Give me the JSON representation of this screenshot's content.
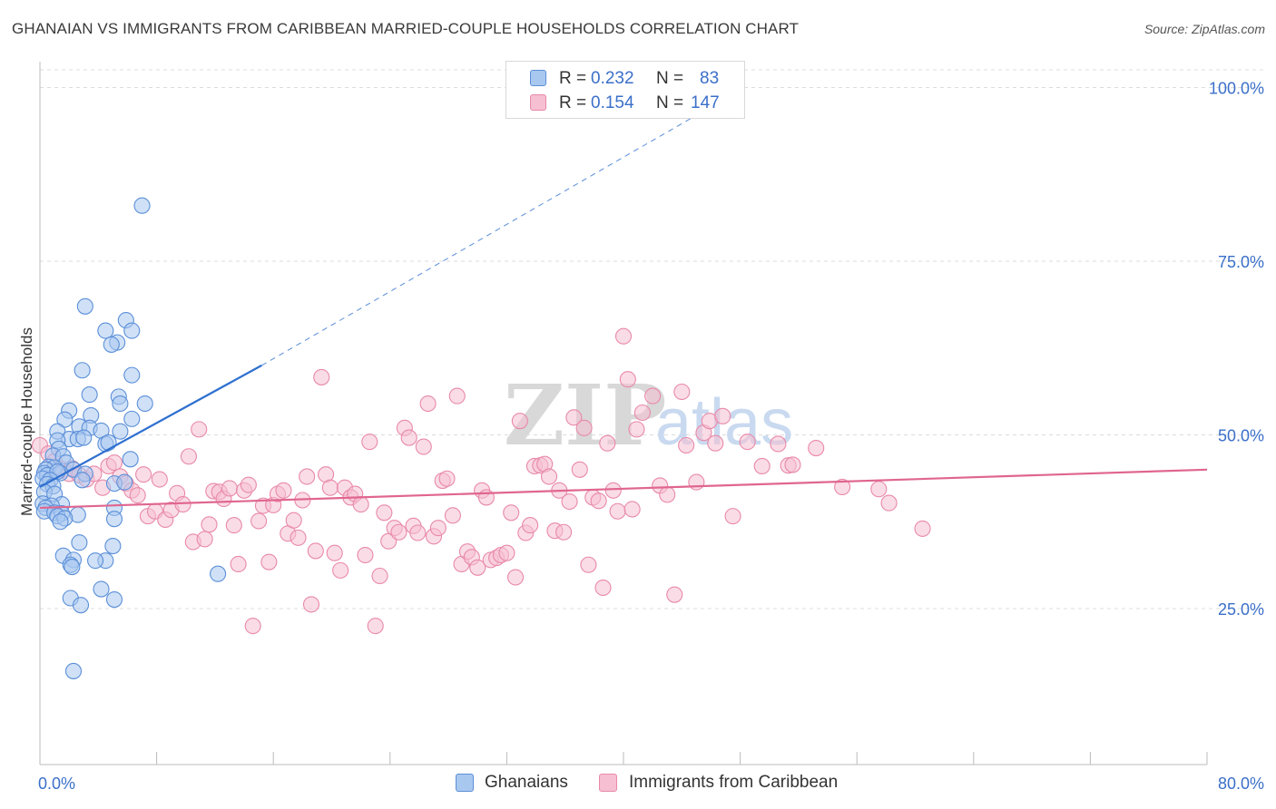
{
  "title": "GHANAIAN VS IMMIGRANTS FROM CARIBBEAN MARRIED-COUPLE HOUSEHOLDS CORRELATION CHART",
  "source": "Source: ZipAtlas.com",
  "watermark": {
    "zip": "ZIP",
    "atlas": "atlas"
  },
  "legend": {
    "r_label": "R =",
    "n_label": "N =",
    "rows": [
      {
        "series": "Ghanaians",
        "r": "0.232",
        "n": "83"
      },
      {
        "series": "Immigrants from Caribbean",
        "r": "0.154",
        "n": "147"
      }
    ]
  },
  "colors": {
    "blue_fill": "#a9c8f0",
    "blue_stroke": "#5b8fd8",
    "blue_line": "#2e6fd0",
    "pink_fill": "#f6bfd2",
    "pink_stroke": "#e889a9",
    "pink_line": "#e0668f",
    "axis_text": "#3b6fc9",
    "grid": "#dcdcdc"
  },
  "chart_data": {
    "type": "scatter",
    "title": "GHANAIAN VS IMMIGRANTS FROM CARIBBEAN MARRIED-COUPLE HOUSEHOLDS CORRELATION CHART",
    "xlabel": "",
    "ylabel": "Married-couple Households",
    "xlim": [
      0,
      80
    ],
    "ylim": [
      0,
      105
    ],
    "x_tick_labels": [
      {
        "value": 0,
        "label": "0.0%"
      },
      {
        "value": 80,
        "label": "80.0%"
      }
    ],
    "y_tick_labels": [
      {
        "value": 25,
        "label": "25.0%"
      },
      {
        "value": 50,
        "label": "50.0%"
      },
      {
        "value": 75,
        "label": "75.0%"
      },
      {
        "value": 100,
        "label": "100.0%"
      }
    ],
    "x_minor_ticks": [
      0,
      8,
      16,
      24,
      32,
      40,
      48,
      56,
      64,
      72,
      80
    ],
    "series": [
      {
        "name": "Ghanaians",
        "r": 0.232,
        "n": 83,
        "trend": {
          "x0": 0,
          "y0": 42.5,
          "x1": 15.2,
          "y1": 60.0,
          "dash_x1": 48.3,
          "dash_y1": 100.0
        },
        "points": [
          [
            7.0,
            83.0
          ],
          [
            3.1,
            68.5
          ],
          [
            5.9,
            66.5
          ],
          [
            4.5,
            65.0
          ],
          [
            6.3,
            65.0
          ],
          [
            5.3,
            63.3
          ],
          [
            4.9,
            63.0
          ],
          [
            2.9,
            59.3
          ],
          [
            6.3,
            58.6
          ],
          [
            3.4,
            55.8
          ],
          [
            5.4,
            55.5
          ],
          [
            5.5,
            54.5
          ],
          [
            7.2,
            54.5
          ],
          [
            2.0,
            53.5
          ],
          [
            3.5,
            52.8
          ],
          [
            1.7,
            52.2
          ],
          [
            6.3,
            52.3
          ],
          [
            2.7,
            51.2
          ],
          [
            3.4,
            51.0
          ],
          [
            4.2,
            50.6
          ],
          [
            1.2,
            50.5
          ],
          [
            5.5,
            50.5
          ],
          [
            2.0,
            49.4
          ],
          [
            2.6,
            49.4
          ],
          [
            1.2,
            49.2
          ],
          [
            3.0,
            49.6
          ],
          [
            4.5,
            48.7
          ],
          [
            4.7,
            48.9
          ],
          [
            1.3,
            48.0
          ],
          [
            0.9,
            47.0
          ],
          [
            1.6,
            46.9
          ],
          [
            6.2,
            46.5
          ],
          [
            1.8,
            46.0
          ],
          [
            0.6,
            45.4
          ],
          [
            1.0,
            45.3
          ],
          [
            0.4,
            45.0
          ],
          [
            0.3,
            44.5
          ],
          [
            2.3,
            45.0
          ],
          [
            0.5,
            44.2
          ],
          [
            1.4,
            44.5
          ],
          [
            1.2,
            44.7
          ],
          [
            3.1,
            44.4
          ],
          [
            0.2,
            43.7
          ],
          [
            0.7,
            43.5
          ],
          [
            2.9,
            43.5
          ],
          [
            0.5,
            42.9
          ],
          [
            5.1,
            43.0
          ],
          [
            5.8,
            43.2
          ],
          [
            0.9,
            42.6
          ],
          [
            0.3,
            41.8
          ],
          [
            1.0,
            41.5
          ],
          [
            0.2,
            40.1
          ],
          [
            1.5,
            40.0
          ],
          [
            0.8,
            39.8
          ],
          [
            0.4,
            39.5
          ],
          [
            5.1,
            39.5
          ],
          [
            0.3,
            39.0
          ],
          [
            1.0,
            38.8
          ],
          [
            1.5,
            38.7
          ],
          [
            2.6,
            38.5
          ],
          [
            1.2,
            38.3
          ],
          [
            1.7,
            38.0
          ],
          [
            5.1,
            37.9
          ],
          [
            1.4,
            37.5
          ],
          [
            2.7,
            34.5
          ],
          [
            5.0,
            34.0
          ],
          [
            1.6,
            32.6
          ],
          [
            2.3,
            32.0
          ],
          [
            4.5,
            31.9
          ],
          [
            3.8,
            31.9
          ],
          [
            2.1,
            31.3
          ],
          [
            2.2,
            31.0
          ],
          [
            12.2,
            30.0
          ],
          [
            4.2,
            27.8
          ],
          [
            5.1,
            26.3
          ],
          [
            2.1,
            26.5
          ],
          [
            2.8,
            25.5
          ],
          [
            2.3,
            16.0
          ]
        ]
      },
      {
        "name": "Immigrants from Caribbean",
        "r": 0.154,
        "n": 147,
        "trend": {
          "x0": 0,
          "y0": 39.5,
          "x1": 80,
          "y1": 45.0
        },
        "points": [
          [
            0.0,
            48.5
          ],
          [
            0.6,
            47.3
          ],
          [
            1.0,
            46.2
          ],
          [
            1.3,
            45.3
          ],
          [
            1.6,
            45.0
          ],
          [
            2.0,
            44.4
          ],
          [
            2.2,
            45.2
          ],
          [
            2.7,
            44.2
          ],
          [
            3.2,
            43.6
          ],
          [
            3.7,
            44.4
          ],
          [
            4.3,
            42.4
          ],
          [
            4.7,
            45.5
          ],
          [
            5.1,
            46.0
          ],
          [
            5.5,
            44.0
          ],
          [
            5.9,
            43.0
          ],
          [
            6.3,
            42.0
          ],
          [
            6.7,
            41.3
          ],
          [
            7.1,
            44.3
          ],
          [
            7.4,
            38.3
          ],
          [
            7.9,
            39.0
          ],
          [
            8.2,
            43.6
          ],
          [
            8.6,
            37.8
          ],
          [
            9.0,
            39.2
          ],
          [
            9.4,
            41.6
          ],
          [
            9.8,
            40.0
          ],
          [
            10.2,
            46.9
          ],
          [
            10.5,
            34.6
          ],
          [
            10.9,
            50.8
          ],
          [
            11.3,
            35.0
          ],
          [
            11.6,
            37.1
          ],
          [
            11.9,
            41.9
          ],
          [
            12.3,
            41.8
          ],
          [
            12.6,
            40.8
          ],
          [
            13.0,
            42.3
          ],
          [
            13.3,
            37.0
          ],
          [
            13.6,
            31.4
          ],
          [
            14.0,
            42.0
          ],
          [
            14.3,
            42.8
          ],
          [
            14.6,
            22.5
          ],
          [
            15.0,
            37.6
          ],
          [
            15.3,
            39.8
          ],
          [
            15.7,
            31.7
          ],
          [
            16.0,
            39.9
          ],
          [
            16.3,
            41.5
          ],
          [
            16.7,
            42.0
          ],
          [
            17.0,
            35.8
          ],
          [
            17.4,
            37.7
          ],
          [
            17.7,
            35.2
          ],
          [
            18.0,
            40.6
          ],
          [
            18.3,
            44.0
          ],
          [
            18.6,
            25.6
          ],
          [
            18.9,
            33.3
          ],
          [
            19.3,
            58.3
          ],
          [
            19.6,
            44.3
          ],
          [
            19.9,
            42.4
          ],
          [
            20.2,
            33.0
          ],
          [
            20.6,
            30.5
          ],
          [
            20.9,
            42.4
          ],
          [
            21.3,
            41.0
          ],
          [
            21.6,
            41.5
          ],
          [
            22.0,
            40.0
          ],
          [
            22.3,
            32.7
          ],
          [
            22.6,
            49.0
          ],
          [
            23.0,
            22.5
          ],
          [
            23.3,
            29.7
          ],
          [
            23.6,
            38.8
          ],
          [
            23.9,
            34.7
          ],
          [
            24.3,
            36.6
          ],
          [
            24.6,
            36.0
          ],
          [
            25.0,
            51.0
          ],
          [
            25.3,
            49.6
          ],
          [
            25.6,
            36.9
          ],
          [
            25.9,
            35.9
          ],
          [
            26.3,
            48.3
          ],
          [
            26.6,
            54.5
          ],
          [
            27.0,
            35.4
          ],
          [
            27.3,
            36.6
          ],
          [
            27.6,
            43.4
          ],
          [
            27.9,
            43.7
          ],
          [
            28.3,
            38.4
          ],
          [
            28.6,
            55.6
          ],
          [
            28.9,
            31.4
          ],
          [
            29.3,
            33.2
          ],
          [
            29.6,
            32.4
          ],
          [
            30.0,
            30.9
          ],
          [
            30.3,
            42.0
          ],
          [
            30.6,
            41.0
          ],
          [
            30.9,
            32.0
          ],
          [
            31.3,
            32.3
          ],
          [
            31.6,
            32.7
          ],
          [
            32.0,
            33.0
          ],
          [
            32.3,
            38.8
          ],
          [
            32.6,
            29.5
          ],
          [
            32.9,
            52.0
          ],
          [
            33.3,
            35.9
          ],
          [
            33.6,
            37.0
          ],
          [
            33.9,
            45.5
          ],
          [
            34.3,
            45.6
          ],
          [
            34.6,
            45.8
          ],
          [
            34.9,
            44.0
          ],
          [
            35.3,
            36.2
          ],
          [
            35.6,
            42.0
          ],
          [
            35.9,
            36.0
          ],
          [
            36.3,
            40.4
          ],
          [
            36.6,
            52.5
          ],
          [
            37.0,
            45.0
          ],
          [
            37.3,
            51.0
          ],
          [
            37.6,
            31.3
          ],
          [
            37.9,
            41.0
          ],
          [
            38.3,
            40.5
          ],
          [
            38.6,
            28.0
          ],
          [
            38.9,
            48.8
          ],
          [
            39.3,
            42.0
          ],
          [
            39.6,
            39.0
          ],
          [
            40.0,
            64.2
          ],
          [
            40.3,
            58.0
          ],
          [
            40.6,
            39.3
          ],
          [
            40.9,
            50.8
          ],
          [
            41.3,
            53.2
          ],
          [
            42.0,
            55.6
          ],
          [
            42.5,
            42.7
          ],
          [
            43.0,
            41.4
          ],
          [
            43.5,
            27.0
          ],
          [
            44.0,
            56.2
          ],
          [
            44.3,
            48.5
          ],
          [
            45.0,
            43.2
          ],
          [
            45.5,
            50.3
          ],
          [
            45.9,
            52.0
          ],
          [
            46.3,
            48.8
          ],
          [
            46.8,
            52.7
          ],
          [
            47.5,
            38.3
          ],
          [
            48.5,
            49.0
          ],
          [
            49.5,
            45.5
          ],
          [
            50.6,
            48.7
          ],
          [
            51.3,
            45.6
          ],
          [
            51.6,
            45.7
          ],
          [
            53.2,
            48.1
          ],
          [
            55.0,
            42.5
          ],
          [
            57.5,
            42.2
          ],
          [
            58.2,
            40.2
          ],
          [
            60.5,
            36.5
          ]
        ]
      }
    ]
  }
}
